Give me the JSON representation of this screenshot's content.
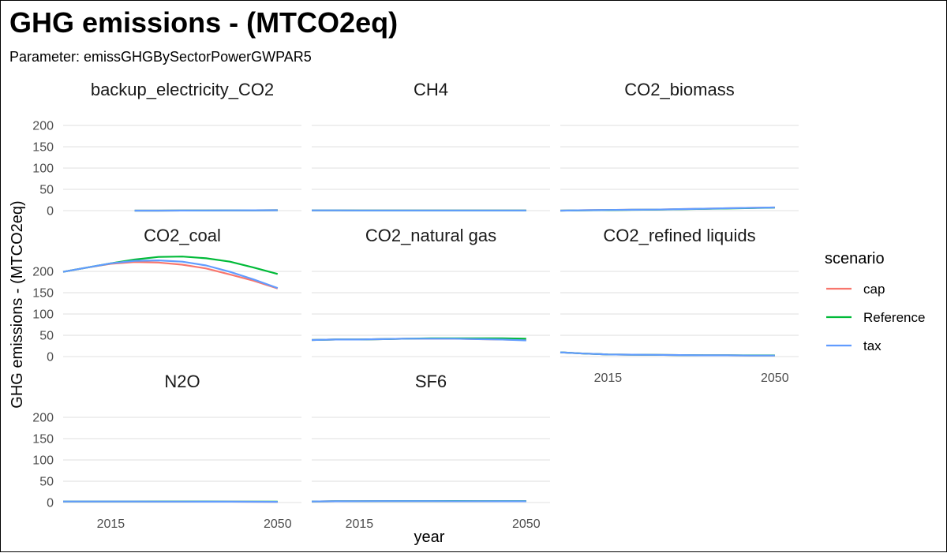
{
  "chart_data": {
    "type": "line",
    "title": "GHG emissions - (MTCO2eq)",
    "subtitle": "Parameter: emissGHGBySectorPowerGWPAR5",
    "xlabel": "year",
    "ylabel": "GHG emissions - (MTCO2eq)",
    "xlim": [
      2005,
      2055
    ],
    "ylim": [
      0,
      215
    ],
    "x_ticks": [
      2015,
      2050
    ],
    "y_ticks": [
      0,
      50,
      100,
      150,
      200
    ],
    "grid": true,
    "legend": {
      "title": "scenario",
      "position": "right",
      "entries": [
        "cap",
        "Reference",
        "tax"
      ]
    },
    "colors": {
      "cap": "#F8766D",
      "Reference": "#00BA38",
      "tax": "#619CFF"
    },
    "facets": [
      {
        "name": "backup_electricity_CO2",
        "series": [
          {
            "name": "cap",
            "x": [
              2020,
              2025,
              2030,
              2035,
              2040,
              2045,
              2050
            ],
            "y": [
              0,
              0,
              0.2,
              0.3,
              0.5,
              0.8,
              1
            ]
          },
          {
            "name": "Reference",
            "x": [
              2020,
              2025,
              2030,
              2035,
              2040,
              2045,
              2050
            ],
            "y": [
              0,
              0,
              0.2,
              0.3,
              0.5,
              0.8,
              1
            ]
          },
          {
            "name": "tax",
            "x": [
              2020,
              2025,
              2030,
              2035,
              2040,
              2045,
              2050
            ],
            "y": [
              0,
              0,
              0.2,
              0.3,
              0.5,
              0.8,
              1
            ]
          }
        ]
      },
      {
        "name": "CH4",
        "series": [
          {
            "name": "cap",
            "x": [
              2005,
              2010,
              2015,
              2020,
              2025,
              2030,
              2035,
              2040,
              2045,
              2050
            ],
            "y": [
              0.5,
              0.5,
              0.4,
              0.4,
              0.4,
              0.3,
              0.3,
              0.3,
              0.3,
              0.3
            ]
          },
          {
            "name": "Reference",
            "x": [
              2005,
              2010,
              2015,
              2020,
              2025,
              2030,
              2035,
              2040,
              2045,
              2050
            ],
            "y": [
              0.5,
              0.5,
              0.4,
              0.4,
              0.4,
              0.4,
              0.4,
              0.3,
              0.3,
              0.3
            ]
          },
          {
            "name": "tax",
            "x": [
              2005,
              2010,
              2015,
              2020,
              2025,
              2030,
              2035,
              2040,
              2045,
              2050
            ],
            "y": [
              0.5,
              0.5,
              0.4,
              0.4,
              0.4,
              0.3,
              0.3,
              0.3,
              0.3,
              0.3
            ]
          }
        ]
      },
      {
        "name": "CO2_biomass",
        "series": [
          {
            "name": "cap",
            "x": [
              2005,
              2010,
              2015,
              2020,
              2025,
              2030,
              2035,
              2040,
              2045,
              2050
            ],
            "y": [
              0,
              1,
              1.5,
              2,
              2.5,
              3.5,
              4.5,
              5.5,
              6.5,
              7.5
            ]
          },
          {
            "name": "Reference",
            "x": [
              2005,
              2010,
              2015,
              2020,
              2025,
              2030,
              2035,
              2040,
              2045,
              2050
            ],
            "y": [
              0,
              0.8,
              1.2,
              1.8,
              2.3,
              3.2,
              4,
              5,
              6,
              7
            ]
          },
          {
            "name": "tax",
            "x": [
              2005,
              2010,
              2015,
              2020,
              2025,
              2030,
              2035,
              2040,
              2045,
              2050
            ],
            "y": [
              0,
              1,
              1.5,
              2,
              2.5,
              3.5,
              4.5,
              5.5,
              6.5,
              7.5
            ]
          }
        ]
      },
      {
        "name": "CO2_coal",
        "series": [
          {
            "name": "cap",
            "x": [
              2005,
              2010,
              2015,
              2020,
              2025,
              2030,
              2035,
              2040,
              2045,
              2050
            ],
            "y": [
              199,
              209,
              218,
              222,
              221,
              216,
              207,
              193,
              178,
              160
            ]
          },
          {
            "name": "Reference",
            "x": [
              2005,
              2010,
              2015,
              2020,
              2025,
              2030,
              2035,
              2040,
              2045,
              2050
            ],
            "y": [
              199,
              209,
              219,
              228,
              234,
              235,
              231,
              223,
              209,
              194
            ]
          },
          {
            "name": "tax",
            "x": [
              2005,
              2010,
              2015,
              2020,
              2025,
              2030,
              2035,
              2040,
              2045,
              2050
            ],
            "y": [
              199,
              209,
              219,
              225,
              226,
              223,
              214,
              199,
              181,
              161
            ]
          }
        ]
      },
      {
        "name": "CO2_natural gas",
        "series": [
          {
            "name": "cap",
            "x": [
              2005,
              2010,
              2015,
              2020,
              2025,
              2030,
              2035,
              2040,
              2045,
              2050
            ],
            "y": [
              39,
              40,
              40,
              41,
              42,
              42,
              42,
              41,
              40,
              39
            ]
          },
          {
            "name": "Reference",
            "x": [
              2005,
              2010,
              2015,
              2020,
              2025,
              2030,
              2035,
              2040,
              2045,
              2050
            ],
            "y": [
              39,
              40,
              40,
              41,
              42,
              43,
              43,
              43,
              43,
              42
            ]
          },
          {
            "name": "tax",
            "x": [
              2005,
              2010,
              2015,
              2020,
              2025,
              2030,
              2035,
              2040,
              2045,
              2050
            ],
            "y": [
              39,
              40,
              40,
              41,
              42,
              42,
              42,
              41,
              40,
              38
            ]
          }
        ]
      },
      {
        "name": "CO2_refined liquids",
        "series": [
          {
            "name": "cap",
            "x": [
              2005,
              2010,
              2015,
              2020,
              2025,
              2030,
              2035,
              2040,
              2045,
              2050
            ],
            "y": [
              10,
              7,
              5,
              4.5,
              4,
              3.5,
              3,
              3,
              2.5,
              2.5
            ]
          },
          {
            "name": "Reference",
            "x": [
              2005,
              2010,
              2015,
              2020,
              2025,
              2030,
              2035,
              2040,
              2045,
              2050
            ],
            "y": [
              10,
              7,
              5,
              4.5,
              4,
              3.5,
              3.2,
              3,
              2.8,
              2.7
            ]
          },
          {
            "name": "tax",
            "x": [
              2005,
              2010,
              2015,
              2020,
              2025,
              2030,
              2035,
              2040,
              2045,
              2050
            ],
            "y": [
              10,
              7,
              5,
              4.5,
              4,
              3.5,
              3,
              3,
              2.5,
              2.5
            ]
          }
        ]
      },
      {
        "name": "N2O",
        "series": [
          {
            "name": "cap",
            "x": [
              2005,
              2010,
              2015,
              2020,
              2025,
              2030,
              2035,
              2040,
              2045,
              2050
            ],
            "y": [
              2.5,
              2.5,
              2.5,
              2.4,
              2.3,
              2.2,
              2.1,
              2,
              1.8,
              1.6
            ]
          },
          {
            "name": "Reference",
            "x": [
              2005,
              2010,
              2015,
              2020,
              2025,
              2030,
              2035,
              2040,
              2045,
              2050
            ],
            "y": [
              2.5,
              2.5,
              2.5,
              2.5,
              2.5,
              2.5,
              2.4,
              2.3,
              2.2,
              2.1
            ]
          },
          {
            "name": "tax",
            "x": [
              2005,
              2010,
              2015,
              2020,
              2025,
              2030,
              2035,
              2040,
              2045,
              2050
            ],
            "y": [
              2.5,
              2.5,
              2.5,
              2.4,
              2.3,
              2.2,
              2.1,
              2,
              1.8,
              1.6
            ]
          }
        ]
      },
      {
        "name": "SF6",
        "series": [
          {
            "name": "cap",
            "x": [
              2005,
              2010,
              2015,
              2020,
              2025,
              2030,
              2035,
              2040,
              2045,
              2050
            ],
            "y": [
              2.5,
              3,
              3.2,
              3.3,
              3.3,
              3.3,
              3.2,
              3.1,
              3,
              2.9
            ]
          },
          {
            "name": "Reference",
            "x": [
              2005,
              2010,
              2015,
              2020,
              2025,
              2030,
              2035,
              2040,
              2045,
              2050
            ],
            "y": [
              2.5,
              3,
              3.2,
              3.4,
              3.5,
              3.5,
              3.5,
              3.4,
              3.4,
              3.3
            ]
          },
          {
            "name": "tax",
            "x": [
              2005,
              2010,
              2015,
              2020,
              2025,
              2030,
              2035,
              2040,
              2045,
              2050
            ],
            "y": [
              2.5,
              3,
              3.2,
              3.3,
              3.3,
              3.3,
              3.2,
              3.1,
              3,
              2.9
            ]
          }
        ]
      }
    ]
  }
}
